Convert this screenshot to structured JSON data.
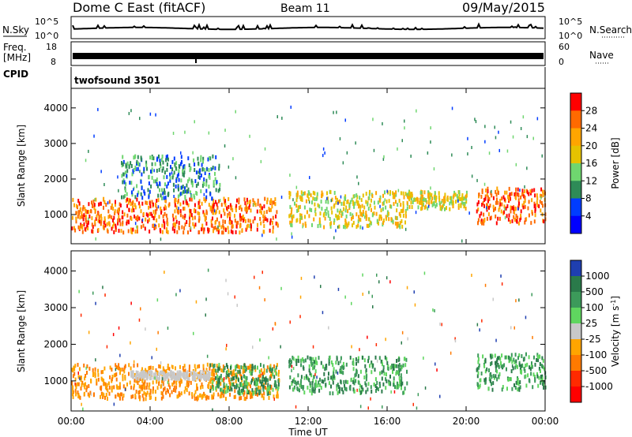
{
  "header": {
    "title": "Dome C East (fitACF)",
    "beam": "Beam 11",
    "date": "09/May/2015"
  },
  "strips": {
    "nsky_label": "N.Sky",
    "nsky_ticks": [
      "10^5",
      "10^0"
    ],
    "nsearch_label": "N.Search",
    "nsearch_ticks": [
      "10^5",
      "10^0"
    ],
    "freq_label": "Freq.",
    "freq_unit": "[MHz]",
    "freq_ticks": [
      "18",
      "8"
    ],
    "nave_label": "Nave",
    "nave_ticks": [
      "60",
      "0"
    ],
    "cpid_label": "CPID",
    "cpid_value": "twofsound 3501"
  },
  "chart_data": [
    {
      "type": "heatmap",
      "panel": "power",
      "ylabel": "Slant Range [km]",
      "xlabel": "Time UT",
      "x_ticks": [
        "00:00",
        "04:00",
        "08:00",
        "12:00",
        "16:00",
        "20:00",
        "00:00"
      ],
      "y_ticks": [
        1000,
        2000,
        3000,
        4000
      ],
      "xlim_hours": [
        0,
        24
      ],
      "ylim_km": [
        180,
        4550
      ],
      "colorbar": {
        "label": "Power [dB]",
        "ticks": [
          "28",
          "24",
          "20",
          "16",
          "12",
          "8",
          "4"
        ],
        "colors": [
          "#ff0000",
          "#ff6a00",
          "#ffa500",
          "#e6c200",
          "#6fd66f",
          "#2e8b57",
          "#003cff",
          "#0000ff"
        ]
      },
      "echo_regions": [
        {
          "t": [
            0.0,
            10.5
          ],
          "range_km": [
            550,
            1500
          ],
          "power_db": 26
        },
        {
          "t": [
            2.5,
            7.5
          ],
          "range_km": [
            1500,
            2700
          ],
          "power_db": 14
        },
        {
          "t": [
            11.0,
            17.0
          ],
          "range_km": [
            700,
            1700
          ],
          "power_db": 20
        },
        {
          "t": [
            17.0,
            20.0
          ],
          "range_km": [
            1200,
            1700
          ],
          "power_db": 18
        },
        {
          "t": [
            20.5,
            24.0
          ],
          "range_km": [
            800,
            1800
          ],
          "power_db": 24
        }
      ]
    },
    {
      "type": "heatmap",
      "panel": "velocity",
      "ylabel": "Slant Range [km]",
      "xlabel": "Time UT",
      "x_ticks": [
        "00:00",
        "04:00",
        "08:00",
        "12:00",
        "16:00",
        "20:00",
        "00:00"
      ],
      "y_ticks": [
        1000,
        2000,
        3000,
        4000
      ],
      "xlim_hours": [
        0,
        24
      ],
      "ylim_km": [
        180,
        4550
      ],
      "colorbar": {
        "label": "Velocity [m s",
        "label_sup": "-1",
        "label_end": "]",
        "ticks": [
          "1000",
          "500",
          "100",
          "25",
          "-25",
          "-100",
          "-500",
          "-1000"
        ],
        "colors": [
          "#1f3fb0",
          "#2a7a4a",
          "#3c9a5a",
          "#5fd65f",
          "#c8c8c8",
          "#ffa500",
          "#ff7a00",
          "#ff2a00",
          "#ff0000"
        ]
      },
      "echo_regions": [
        {
          "t": [
            0.0,
            10.5
          ],
          "range_km": [
            550,
            1500
          ],
          "velocity": -150
        },
        {
          "t": [
            3.0,
            7.0
          ],
          "range_km": [
            1100,
            1300
          ],
          "velocity": 0
        },
        {
          "t": [
            7.0,
            10.5
          ],
          "range_km": [
            700,
            1500
          ],
          "velocity": 150
        },
        {
          "t": [
            11.0,
            17.0
          ],
          "range_km": [
            700,
            1700
          ],
          "velocity": 100
        },
        {
          "t": [
            20.5,
            24.0
          ],
          "range_km": [
            800,
            1800
          ],
          "velocity": 200
        }
      ]
    }
  ]
}
